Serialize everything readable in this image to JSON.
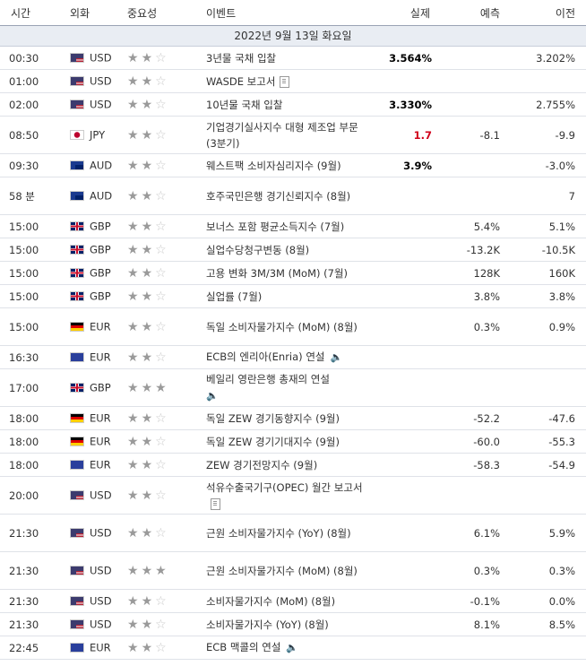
{
  "headers": {
    "time": "시간",
    "currency": "외화",
    "importance": "중요성",
    "event": "이벤트",
    "actual": "실제",
    "forecast": "예측",
    "previous": "이전"
  },
  "date": "2022년 9월 13일 화요일",
  "rows": [
    {
      "time": "00:30",
      "currency": "USD",
      "flag": "us",
      "stars": 2,
      "event": "3년물 국채 입찰",
      "icon": "",
      "actual": "3.564%",
      "actual_color": "#000",
      "forecast": "",
      "previous": "3.202%"
    },
    {
      "time": "01:00",
      "currency": "USD",
      "flag": "us",
      "stars": 2,
      "event": "WASDE 보고서",
      "icon": "doc",
      "actual": "",
      "actual_color": "#000",
      "forecast": "",
      "previous": ""
    },
    {
      "time": "02:00",
      "currency": "USD",
      "flag": "us",
      "stars": 2,
      "event": "10년물 국채 입찰",
      "icon": "",
      "actual": "3.330%",
      "actual_color": "#000",
      "forecast": "",
      "previous": "2.755%"
    },
    {
      "time": "08:50",
      "currency": "JPY",
      "flag": "jp",
      "stars": 2,
      "event": "기업경기실사지수 대형 제조업 부문 (3분기)",
      "icon": "",
      "actual": "1.7",
      "actual_color": "#d0021b",
      "forecast": "-8.1",
      "previous": "-9.9"
    },
    {
      "time": "09:30",
      "currency": "AUD",
      "flag": "au",
      "stars": 2,
      "event": "웨스트팩 소비자심리지수 (9월)",
      "icon": "",
      "actual": "3.9%",
      "actual_color": "#000",
      "forecast": "",
      "previous": "-3.0%"
    },
    {
      "time": "58 분",
      "currency": "AUD",
      "flag": "au",
      "stars": 2,
      "event": "호주국민은행 경기신뢰지수 (8월)",
      "icon": "",
      "actual": "",
      "actual_color": "#000",
      "forecast": "",
      "previous": "7"
    },
    {
      "time": "15:00",
      "currency": "GBP",
      "flag": "gb",
      "stars": 2,
      "event": "보너스 포함 평균소득지수 (7월)",
      "icon": "",
      "actual": "",
      "actual_color": "#000",
      "forecast": "5.4%",
      "previous": "5.1%"
    },
    {
      "time": "15:00",
      "currency": "GBP",
      "flag": "gb",
      "stars": 2,
      "event": "실업수당청구변동 (8월)",
      "icon": "",
      "actual": "",
      "actual_color": "#000",
      "forecast": "-13.2K",
      "previous": "-10.5K"
    },
    {
      "time": "15:00",
      "currency": "GBP",
      "flag": "gb",
      "stars": 2,
      "event": "고용 변화 3M/3M (MoM) (7월)",
      "icon": "",
      "actual": "",
      "actual_color": "#000",
      "forecast": "128K",
      "previous": "160K"
    },
    {
      "time": "15:00",
      "currency": "GBP",
      "flag": "gb",
      "stars": 2,
      "event": "실업률 (7월)",
      "icon": "",
      "actual": "",
      "actual_color": "#000",
      "forecast": "3.8%",
      "previous": "3.8%"
    },
    {
      "time": "15:00",
      "currency": "EUR",
      "flag": "de",
      "stars": 2,
      "event": "독일 소비자물가지수 (MoM) (8월)",
      "icon": "",
      "actual": "",
      "actual_color": "#000",
      "forecast": "0.3%",
      "previous": "0.9%"
    },
    {
      "time": "16:30",
      "currency": "EUR",
      "flag": "eu",
      "stars": 2,
      "event": "ECB의 엔리아(Enria) 연설",
      "icon": "speaker",
      "actual": "",
      "actual_color": "#000",
      "forecast": "",
      "previous": ""
    },
    {
      "time": "17:00",
      "currency": "GBP",
      "flag": "gb",
      "stars": 3,
      "event": "베일리 영란은행 총재의 연설",
      "icon": "speaker-below",
      "actual": "",
      "actual_color": "#000",
      "forecast": "",
      "previous": ""
    },
    {
      "time": "18:00",
      "currency": "EUR",
      "flag": "de",
      "stars": 2,
      "event": "독일 ZEW 경기동향지수 (9월)",
      "icon": "",
      "actual": "",
      "actual_color": "#000",
      "forecast": "-52.2",
      "previous": "-47.6"
    },
    {
      "time": "18:00",
      "currency": "EUR",
      "flag": "de",
      "stars": 2,
      "event": "독일 ZEW 경기기대지수 (9월)",
      "icon": "",
      "actual": "",
      "actual_color": "#000",
      "forecast": "-60.0",
      "previous": "-55.3"
    },
    {
      "time": "18:00",
      "currency": "EUR",
      "flag": "eu",
      "stars": 2,
      "event": "ZEW 경기전망지수 (9월)",
      "icon": "",
      "actual": "",
      "actual_color": "#000",
      "forecast": "-58.3",
      "previous": "-54.9"
    },
    {
      "time": "20:00",
      "currency": "USD",
      "flag": "us",
      "stars": 2,
      "event": "석유수출국기구(OPEC) 월간 보고서",
      "icon": "doc",
      "actual": "",
      "actual_color": "#000",
      "forecast": "",
      "previous": ""
    },
    {
      "time": "21:30",
      "currency": "USD",
      "flag": "us",
      "stars": 2,
      "event": "근원 소비자물가지수 (YoY) (8월)",
      "icon": "",
      "actual": "",
      "actual_color": "#000",
      "forecast": "6.1%",
      "previous": "5.9%"
    },
    {
      "time": "21:30",
      "currency": "USD",
      "flag": "us",
      "stars": 3,
      "event": "근원 소비자물가지수 (MoM) (8월)",
      "icon": "",
      "actual": "",
      "actual_color": "#000",
      "forecast": "0.3%",
      "previous": "0.3%"
    },
    {
      "time": "21:30",
      "currency": "USD",
      "flag": "us",
      "stars": 2,
      "event": "소비자물가지수 (MoM) (8월)",
      "icon": "",
      "actual": "",
      "actual_color": "#000",
      "forecast": "-0.1%",
      "previous": "0.0%"
    },
    {
      "time": "21:30",
      "currency": "USD",
      "flag": "us",
      "stars": 2,
      "event": "소비자물가지수 (YoY) (8월)",
      "icon": "",
      "actual": "",
      "actual_color": "#000",
      "forecast": "8.1%",
      "previous": "8.5%"
    },
    {
      "time": "22:45",
      "currency": "EUR",
      "flag": "eu",
      "stars": 2,
      "event": "ECB 맥콜의 연설",
      "icon": "speaker",
      "actual": "",
      "actual_color": "#000",
      "forecast": "",
      "previous": ""
    }
  ]
}
